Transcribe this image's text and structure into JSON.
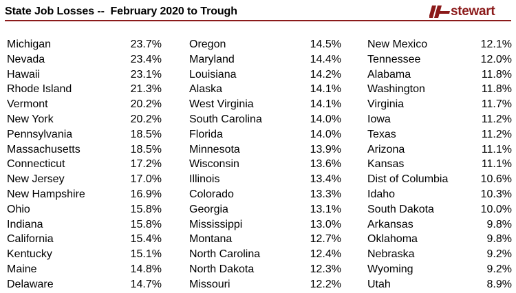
{
  "title": "State Job Losses --  February 2020 to Trough",
  "logo": {
    "text": "stewart",
    "icon": "stewart-logo-mark-icon",
    "color": "#8b1a1a"
  },
  "columns": [
    {
      "rows": [
        {
          "state": "Michigan",
          "value": "23.7%"
        },
        {
          "state": "Nevada",
          "value": "23.4%"
        },
        {
          "state": "Hawaii",
          "value": "23.1%"
        },
        {
          "state": "Rhode Island",
          "value": "21.3%"
        },
        {
          "state": "Vermont",
          "value": "20.2%"
        },
        {
          "state": "New York",
          "value": "20.2%"
        },
        {
          "state": "Pennsylvania",
          "value": "18.5%"
        },
        {
          "state": "Massachusetts",
          "value": "18.5%"
        },
        {
          "state": "Connecticut",
          "value": "17.2%"
        },
        {
          "state": "New Jersey",
          "value": "17.0%"
        },
        {
          "state": "New Hampshire",
          "value": "16.9%"
        },
        {
          "state": "Ohio",
          "value": "15.8%"
        },
        {
          "state": "Indiana",
          "value": "15.8%"
        },
        {
          "state": "California",
          "value": "15.4%"
        },
        {
          "state": "Kentucky",
          "value": "15.1%"
        },
        {
          "state": "Maine",
          "value": "14.8%"
        },
        {
          "state": "Delaware",
          "value": "14.7%"
        }
      ]
    },
    {
      "rows": [
        {
          "state": "Oregon",
          "value": "14.5%"
        },
        {
          "state": "Maryland",
          "value": "14.4%"
        },
        {
          "state": "Louisiana",
          "value": "14.2%"
        },
        {
          "state": "Alaska",
          "value": "14.1%"
        },
        {
          "state": "West Virginia",
          "value": "14.1%"
        },
        {
          "state": "South Carolina",
          "value": "14.0%"
        },
        {
          "state": "Florida",
          "value": "14.0%"
        },
        {
          "state": "Minnesota",
          "value": "13.9%"
        },
        {
          "state": "Wisconsin",
          "value": "13.6%"
        },
        {
          "state": "Illinois",
          "value": "13.4%"
        },
        {
          "state": "Colorado",
          "value": "13.3%"
        },
        {
          "state": "Georgia",
          "value": "13.1%"
        },
        {
          "state": "Mississippi",
          "value": "13.0%"
        },
        {
          "state": "Montana",
          "value": "12.7%"
        },
        {
          "state": "North Carolina",
          "value": "12.4%"
        },
        {
          "state": "North Dakota",
          "value": "12.3%"
        },
        {
          "state": "Missouri",
          "value": "12.2%"
        }
      ]
    },
    {
      "rows": [
        {
          "state": "New Mexico",
          "value": "12.1%"
        },
        {
          "state": "Tennessee",
          "value": "12.0%"
        },
        {
          "state": "Alabama",
          "value": "11.8%"
        },
        {
          "state": "Washington",
          "value": "11.8%"
        },
        {
          "state": "Virginia",
          "value": "11.7%"
        },
        {
          "state": "Iowa",
          "value": "11.2%"
        },
        {
          "state": "Texas",
          "value": "11.2%"
        },
        {
          "state": "Arizona",
          "value": "11.1%"
        },
        {
          "state": "Kansas",
          "value": "11.1%"
        },
        {
          "state": "Dist of Columbia",
          "value": "10.6%"
        },
        {
          "state": "Idaho",
          "value": "10.3%"
        },
        {
          "state": "South Dakota",
          "value": "10.0%"
        },
        {
          "state": "Arkansas",
          "value": "9.8%"
        },
        {
          "state": "Oklahoma",
          "value": "9.8%"
        },
        {
          "state": "Nebraska",
          "value": "9.2%"
        },
        {
          "state": "Wyoming",
          "value": "9.2%"
        },
        {
          "state": "Utah",
          "value": "8.9%"
        }
      ]
    }
  ]
}
